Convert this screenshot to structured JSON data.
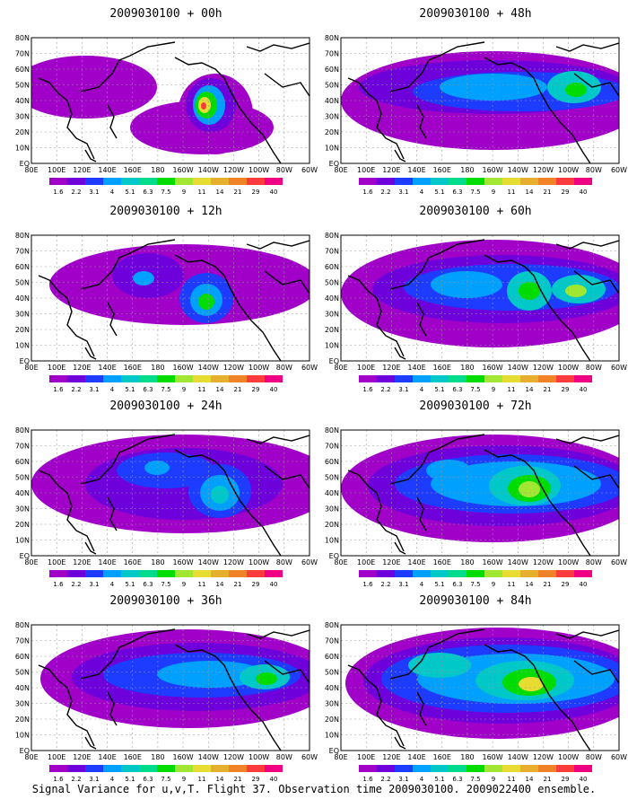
{
  "maps": [
    {
      "title": "2009030100 + 00h"
    },
    {
      "title": "2009030100 + 48h"
    },
    {
      "title": "2009030100 + 12h"
    },
    {
      "title": "2009030100 + 60h"
    },
    {
      "title": "2009030100 + 24h"
    },
    {
      "title": "2009030100 + 72h"
    },
    {
      "title": "2009030100 + 36h"
    },
    {
      "title": "2009030100 + 84h"
    }
  ],
  "lat_labels": [
    "80N",
    "70N",
    "60N",
    "50N",
    "40N",
    "30N",
    "20N",
    "10N",
    "EQ"
  ],
  "lon_labels": [
    "80E",
    "100E",
    "120E",
    "140E",
    "160E",
    "180",
    "160W",
    "140W",
    "120W",
    "100W",
    "80W",
    "60W"
  ],
  "colorbar": {
    "levels": [
      "1.6",
      "2.2",
      "3.1",
      "4",
      "5.1",
      "6.3",
      "7.5",
      "9",
      "11",
      "14",
      "21",
      "29",
      "40"
    ],
    "colors": [
      "#a000c8",
      "#6e00dc",
      "#1e3cff",
      "#00a0ff",
      "#00c8c8",
      "#00dc8c",
      "#00dc00",
      "#a0e632",
      "#e6dc32",
      "#e6af2d",
      "#f08228",
      "#fa3c3c",
      "#f00082"
    ]
  },
  "caption": "Signal Variance for u,v,T. Flight 37. Observation time 2009030100. 2009022400 ensemble."
}
